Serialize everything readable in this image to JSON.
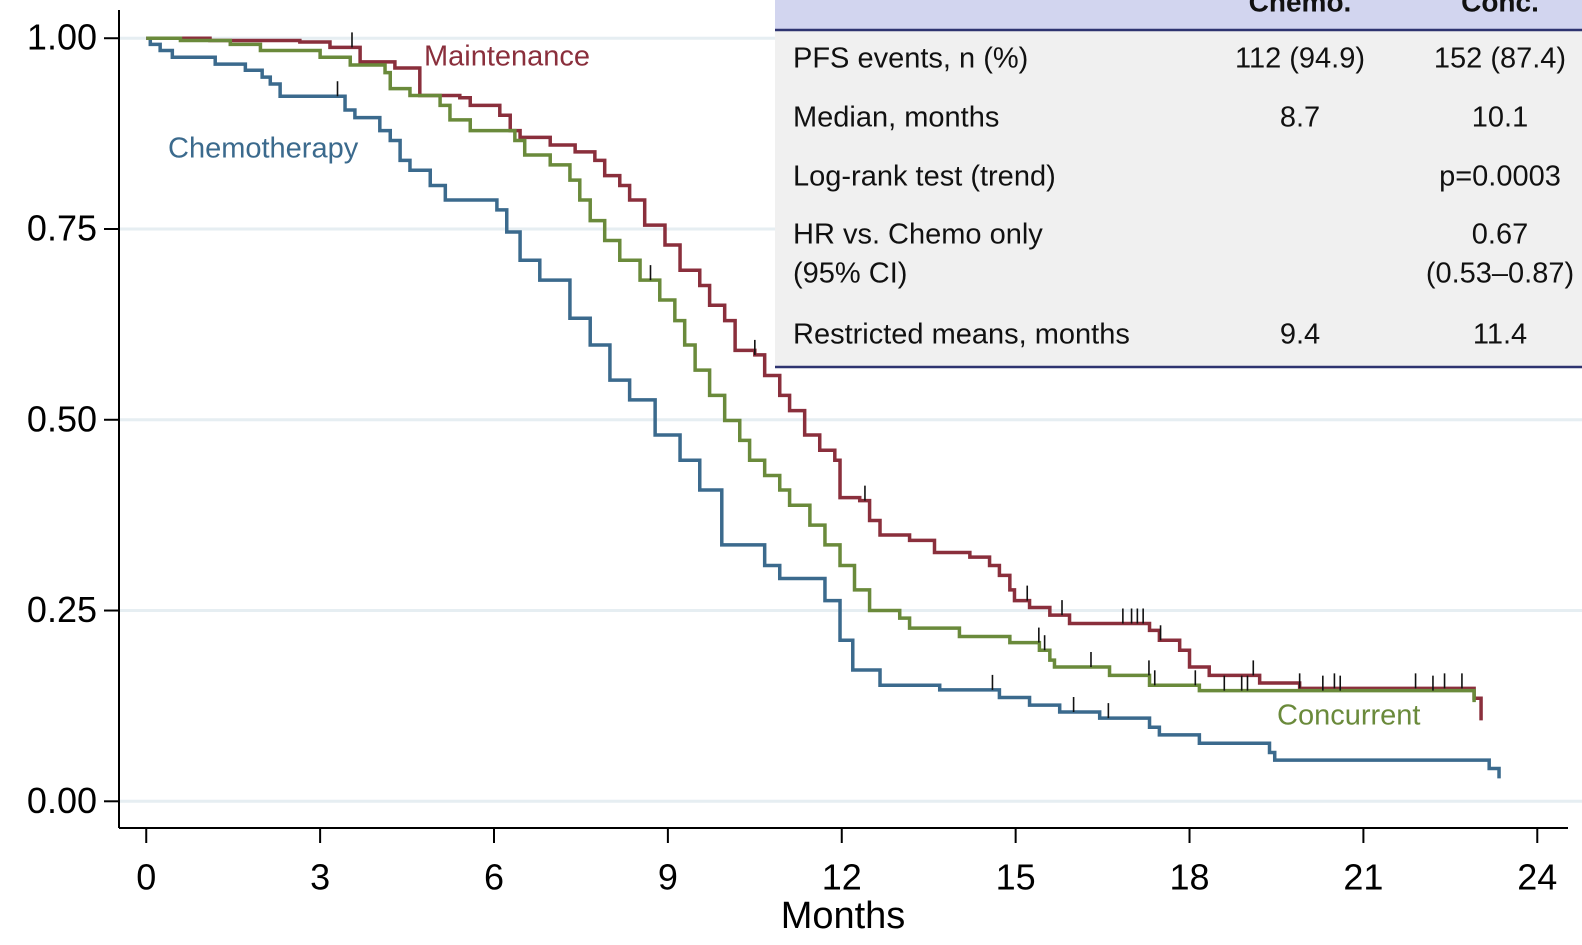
{
  "chart_data": {
    "type": "step",
    "xlabel": "Months",
    "xlim": [
      -0.47,
      24.53
    ],
    "ylim": [
      -0.035,
      1.037
    ],
    "xticks": [
      0,
      3,
      6,
      9,
      12,
      15,
      18,
      21,
      24
    ],
    "yticks": [
      {
        "value": 0,
        "label": "0.00"
      },
      {
        "value": 0.25,
        "label": "0.25"
      },
      {
        "value": 0.5,
        "label": "0.50"
      },
      {
        "value": 0.75,
        "label": "0.75"
      },
      {
        "value": 1,
        "label": "1.00"
      }
    ],
    "grid": true,
    "series": [
      {
        "name": "Chemotherapy",
        "color": "#3b6a8d",
        "x": [
          0,
          0.07,
          0.24,
          0.45,
          1.19,
          1.71,
          2.0,
          2.14,
          2.31,
          3.43,
          3.6,
          4.03,
          4.21,
          4.38,
          4.55,
          4.9,
          5.16,
          6.05,
          6.22,
          6.45,
          6.79,
          7.31,
          7.66,
          8.0,
          8.34,
          8.78,
          9.21,
          9.55,
          9.93,
          10.67,
          10.93,
          11.71,
          11.97,
          12.19,
          12.66,
          13.69,
          14.72,
          15.24,
          15.76,
          16.45,
          17.31,
          17.48,
          18.17,
          19.38,
          19.47,
          23.17,
          23.34
        ],
        "values": [
          1,
          0.992,
          0.984,
          0.975,
          0.966,
          0.958,
          0.949,
          0.94,
          0.924,
          0.906,
          0.896,
          0.879,
          0.866,
          0.84,
          0.827,
          0.807,
          0.788,
          0.775,
          0.746,
          0.709,
          0.683,
          0.633,
          0.598,
          0.552,
          0.526,
          0.48,
          0.447,
          0.408,
          0.336,
          0.309,
          0.292,
          0.263,
          0.211,
          0.172,
          0.152,
          0.146,
          0.136,
          0.126,
          0.117,
          0.109,
          0.097,
          0.087,
          0.076,
          0.064,
          0.054,
          0.043,
          0.03
        ],
        "censored": [
          3.3,
          14.6,
          16.0,
          16.6
        ]
      },
      {
        "name": "Maintenance",
        "color": "#8a2f3c",
        "x": [
          0,
          1.1,
          2.65,
          3.17,
          3.69,
          4.29,
          4.72,
          5.41,
          5.59,
          6.1,
          6.28,
          6.45,
          6.97,
          7.4,
          7.74,
          7.91,
          8.17,
          8.34,
          8.6,
          8.95,
          9.21,
          9.55,
          9.72,
          9.98,
          10.16,
          10.5,
          10.67,
          10.93,
          11.1,
          11.36,
          11.62,
          11.88,
          11.97,
          12.31,
          12.48,
          12.66,
          13.17,
          13.6,
          14.21,
          14.55,
          14.72,
          14.9,
          14.98,
          15.24,
          15.59,
          15.93,
          17.31,
          17.48,
          17.83,
          18.0,
          18.34,
          19.21,
          19.9,
          22.91,
          23.03
        ],
        "values": [
          1,
          0.997,
          0.995,
          0.988,
          0.969,
          0.961,
          0.925,
          0.922,
          0.912,
          0.899,
          0.879,
          0.87,
          0.86,
          0.851,
          0.84,
          0.82,
          0.807,
          0.788,
          0.755,
          0.729,
          0.696,
          0.676,
          0.65,
          0.63,
          0.591,
          0.585,
          0.558,
          0.532,
          0.512,
          0.48,
          0.46,
          0.447,
          0.398,
          0.394,
          0.368,
          0.349,
          0.342,
          0.326,
          0.32,
          0.309,
          0.296,
          0.277,
          0.263,
          0.254,
          0.244,
          0.233,
          0.224,
          0.211,
          0.198,
          0.176,
          0.165,
          0.155,
          0.148,
          0.135,
          0.106
        ],
        "censored": [
          3.55,
          10.5,
          12.4,
          15.2,
          15.8,
          16.85,
          17.0,
          17.1,
          17.2,
          17.5,
          19.1,
          19.9,
          20.5,
          21.9,
          22.4,
          22.7
        ]
      },
      {
        "name": "Concurrent",
        "color": "#6a8a3b",
        "x": [
          0,
          0.59,
          1.45,
          1.97,
          3.0,
          3.52,
          4.12,
          4.21,
          4.55,
          5.07,
          5.24,
          5.59,
          6.36,
          6.53,
          6.97,
          7.31,
          7.48,
          7.66,
          7.91,
          8.17,
          8.52,
          8.86,
          9.12,
          9.29,
          9.47,
          9.72,
          9.98,
          10.24,
          10.41,
          10.67,
          10.93,
          11.1,
          11.45,
          11.71,
          11.97,
          12.22,
          12.48,
          13.0,
          13.17,
          14.03,
          14.9,
          15.41,
          15.59,
          15.67,
          16.62,
          17.31,
          18.17,
          22.91
        ],
        "values": [
          1,
          0.997,
          0.992,
          0.984,
          0.975,
          0.965,
          0.955,
          0.934,
          0.925,
          0.912,
          0.893,
          0.879,
          0.866,
          0.847,
          0.834,
          0.814,
          0.788,
          0.761,
          0.735,
          0.709,
          0.683,
          0.657,
          0.63,
          0.598,
          0.565,
          0.532,
          0.499,
          0.473,
          0.447,
          0.427,
          0.408,
          0.388,
          0.362,
          0.336,
          0.309,
          0.277,
          0.25,
          0.24,
          0.227,
          0.216,
          0.208,
          0.198,
          0.185,
          0.176,
          0.165,
          0.152,
          0.145,
          0.13
        ],
        "censored": [
          8.7,
          15.4,
          15.5,
          16.3,
          17.3,
          17.4,
          18.1,
          18.6,
          18.9,
          19.0,
          20.3,
          20.6,
          22.2
        ]
      }
    ]
  },
  "table": {
    "columns": [
      "Chemo.",
      "Conc."
    ],
    "rows": [
      {
        "label": "PFS events, n (%)",
        "chemo": "112 (94.9)",
        "conc": "152 (87.4)"
      },
      {
        "label": "Median, months",
        "chemo": "8.7",
        "conc": "10.1"
      },
      {
        "label": "Log-rank test (trend)",
        "conc": "p=0.0003"
      },
      {
        "label": [
          "HR vs. Chemo only",
          "(95% CI)"
        ],
        "conc": [
          "0.67",
          "(0.53–0.87)"
        ]
      },
      {
        "label": "Restricted means, months",
        "chemo": "9.4",
        "conc": "11.4"
      }
    ]
  }
}
